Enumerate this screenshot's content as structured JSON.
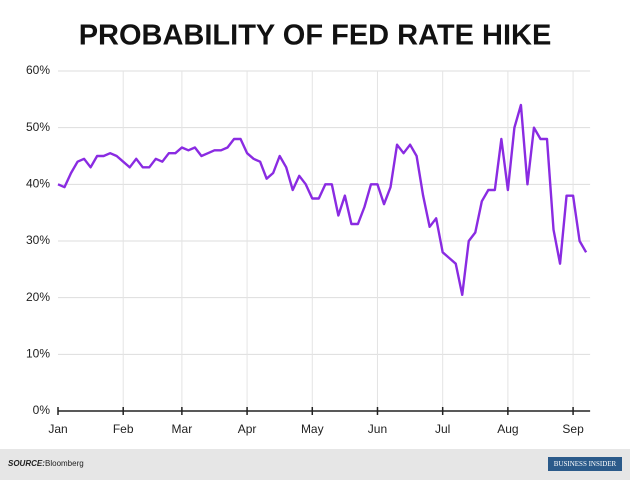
{
  "chart_data": {
    "type": "line",
    "title": "PROBABILITY OF FED RATE HIKE",
    "categories": [
      "Jan",
      null,
      null,
      null,
      null,
      null,
      null,
      null,
      null,
      null,
      "Feb",
      null,
      null,
      null,
      null,
      null,
      null,
      null,
      null,
      "Mar",
      null,
      null,
      null,
      null,
      null,
      null,
      null,
      null,
      null,
      "Apr",
      null,
      null,
      null,
      null,
      null,
      null,
      null,
      null,
      null,
      "May",
      null,
      null,
      null,
      null,
      null,
      null,
      null,
      null,
      null,
      "Jun",
      null,
      null,
      null,
      null,
      null,
      null,
      null,
      null,
      null,
      "Jul",
      null,
      null,
      null,
      null,
      null,
      null,
      null,
      null,
      null,
      "Aug",
      null,
      null,
      null,
      null,
      null,
      null,
      null,
      null,
      null,
      "Sep",
      null,
      null
    ],
    "values": [
      40,
      39.5,
      42,
      44,
      44.5,
      43,
      45,
      45,
      45.5,
      45,
      44,
      43,
      44.5,
      43,
      43,
      44.5,
      44,
      45.5,
      45.5,
      46.5,
      46,
      46.5,
      45,
      45.5,
      46,
      46,
      46.5,
      48,
      48,
      45.5,
      44.5,
      44,
      41,
      42,
      45,
      43,
      39,
      41.5,
      40,
      37.5,
      37.5,
      40,
      40,
      34.5,
      38,
      33,
      33,
      36,
      40,
      40,
      36.5,
      39.5,
      47,
      45.5,
      47,
      45,
      38,
      32.5,
      34,
      28,
      27,
      26,
      20.5,
      30,
      31.5,
      37,
      39,
      39,
      48,
      39,
      50,
      54,
      40,
      50,
      48,
      48,
      32,
      26,
      38,
      38,
      30,
      28
    ],
    "color": "#8a2be2",
    "ylim": [
      0,
      60
    ],
    "yticks": [
      {
        "value": 0,
        "label": "0%"
      },
      {
        "value": 10,
        "label": "10%"
      },
      {
        "value": 20,
        "label": "20%"
      },
      {
        "value": 30,
        "label": "30%"
      },
      {
        "value": 40,
        "label": "40%"
      },
      {
        "value": 50,
        "label": "50%"
      },
      {
        "value": 60,
        "label": "60%"
      }
    ],
    "grid": true
  },
  "footer": {
    "source_label": "SOURCE:",
    "source": "Bloomberg",
    "brand": "BUSINESS INSIDER"
  }
}
